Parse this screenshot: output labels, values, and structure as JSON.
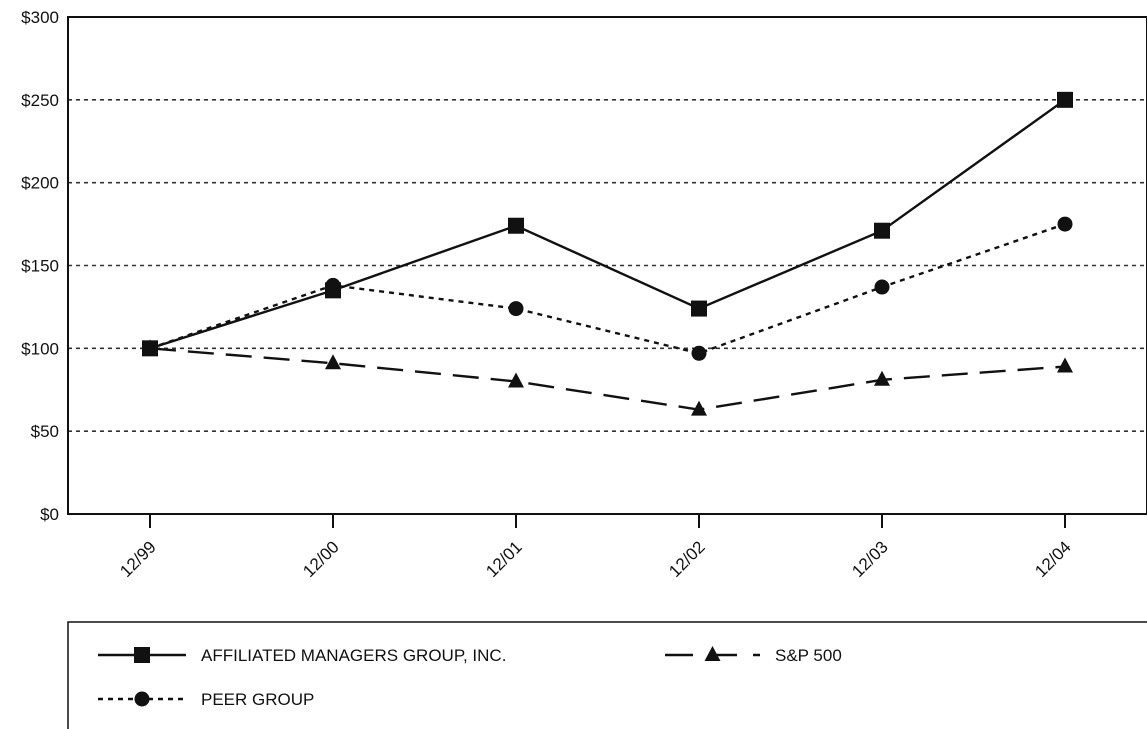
{
  "chart_data": {
    "type": "line",
    "categories": [
      "12/99",
      "12/00",
      "12/01",
      "12/02",
      "12/03",
      "12/04"
    ],
    "ylim": [
      0,
      300
    ],
    "yticks": [
      0,
      50,
      100,
      150,
      200,
      250,
      300
    ],
    "ytick_labels": [
      "$0",
      "$50",
      "$100",
      "$150",
      "$200",
      "$250",
      "$300"
    ],
    "grid": "horizontal dashed",
    "legend_placement": "bottom",
    "series": [
      {
        "name": "AFFILIATED MANAGERS GROUP, INC.",
        "values": [
          100,
          135,
          174,
          124,
          171,
          250
        ],
        "line_style": "solid",
        "marker": "square",
        "color": "#111111"
      },
      {
        "name": "S&P 500",
        "values": [
          100,
          91,
          80,
          63,
          81,
          89
        ],
        "line_style": "dashed",
        "marker": "triangle",
        "color": "#111111"
      },
      {
        "name": "PEER GROUP",
        "values": [
          100,
          138,
          124,
          97,
          137,
          175
        ],
        "line_style": "dotted",
        "marker": "circle",
        "color": "#111111"
      }
    ]
  }
}
